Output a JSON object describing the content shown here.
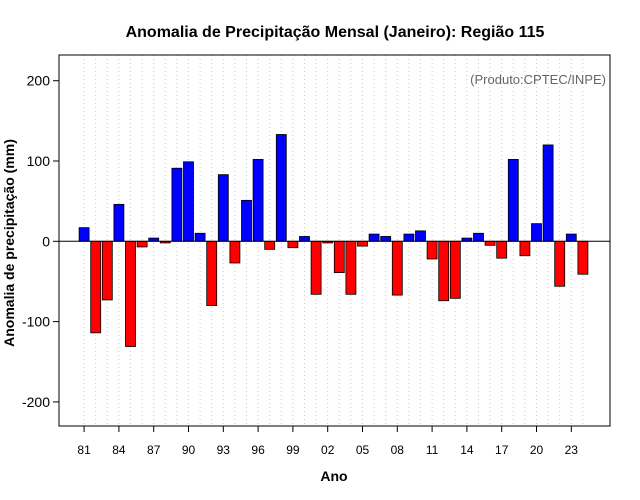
{
  "chart_data": {
    "type": "bar",
    "title": "Anomalia de Precipitação Mensal (Janeiro): Região 115",
    "xlabel": "Ano",
    "ylabel": "Anomalia de precipitação (mm)",
    "credit": "(Produto:CPTEC/INPE)",
    "ylim": [
      -230,
      232
    ],
    "yticks": [
      -200,
      -100,
      0,
      100,
      200
    ],
    "grid": "vertical dotted",
    "positive_color": "#0000ff",
    "negative_color": "#ff0000",
    "categories": [
      "1981",
      "1982",
      "1983",
      "1984",
      "1985",
      "1986",
      "1987",
      "1988",
      "1989",
      "1990",
      "1991",
      "1992",
      "1993",
      "1994",
      "1995",
      "1996",
      "1997",
      "1998",
      "1999",
      "2000",
      "2001",
      "2002",
      "2003",
      "2004",
      "2005",
      "2006",
      "2007",
      "2008",
      "2009",
      "2010",
      "2011",
      "2012",
      "2013",
      "2014",
      "2015",
      "2016",
      "2017",
      "2018",
      "2019",
      "2020",
      "2021",
      "2022",
      "2023",
      "2024"
    ],
    "values": [
      17,
      -114,
      -73,
      46,
      -131,
      -7,
      4,
      -2,
      91,
      99,
      10,
      -80,
      83,
      -27,
      51,
      102,
      -10,
      133,
      -8,
      6,
      -66,
      -2,
      -39,
      -66,
      -6,
      9,
      6,
      -67,
      9,
      13,
      -22,
      -74,
      -71,
      4,
      10,
      -5,
      -21,
      102,
      -18,
      22,
      120,
      -56,
      9,
      -41
    ],
    "xtick_labels": [
      "81",
      "84",
      "87",
      "90",
      "93",
      "96",
      "99",
      "02",
      "05",
      "08",
      "11",
      "14",
      "17",
      "20",
      "23"
    ]
  }
}
